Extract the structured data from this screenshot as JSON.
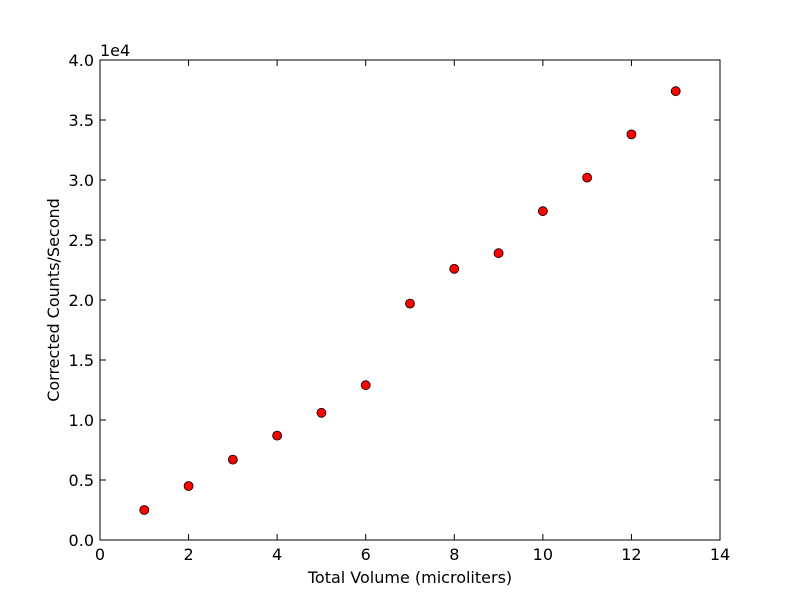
{
  "chart_data": {
    "type": "scatter",
    "title": "",
    "xlabel": "Total Volume (microliters)",
    "ylabel": "Corrected Counts/Second",
    "xlim": [
      0,
      14
    ],
    "ylim": [
      0,
      40000
    ],
    "x_ticks": [
      0,
      2,
      4,
      6,
      8,
      10,
      12,
      14
    ],
    "x_tick_labels": [
      "0",
      "2",
      "4",
      "6",
      "8",
      "10",
      "12",
      "14"
    ],
    "y_ticks": [
      0,
      5000,
      10000,
      15000,
      20000,
      25000,
      30000,
      35000,
      40000
    ],
    "y_tick_labels": [
      "0.0",
      "0.5",
      "1.0",
      "1.5",
      "2.0",
      "2.5",
      "3.0",
      "3.5",
      "4.0"
    ],
    "y_offset_label": "1e4",
    "grid": false,
    "legend": "none",
    "marker": "circle",
    "marker_color": "#ff0000",
    "marker_edge_color": "#000000",
    "series": [
      {
        "x": [
          1,
          2,
          3,
          4,
          5,
          6,
          7,
          8,
          9,
          10,
          11,
          12,
          13
        ],
        "y": [
          2500,
          4500,
          6700,
          8700,
          10600,
          12900,
          19700,
          22600,
          23900,
          27400,
          30200,
          33800,
          37400
        ]
      }
    ]
  }
}
